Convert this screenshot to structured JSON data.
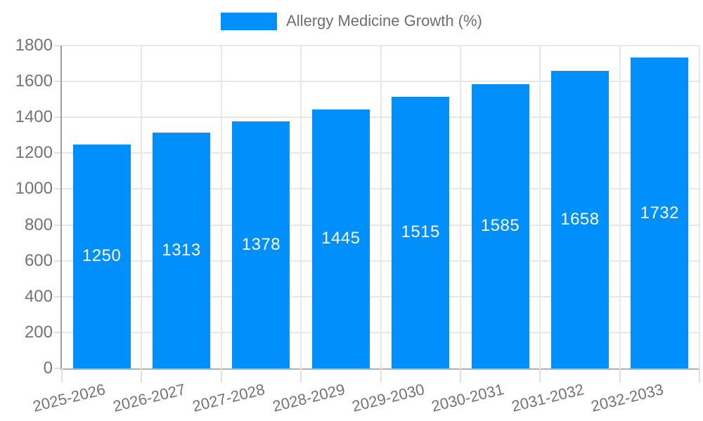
{
  "chart_data": {
    "type": "bar",
    "title": "Allergy Medicine Growth (%)",
    "categories": [
      "2025-2026",
      "2026-2027",
      "2027-2028",
      "2028-2029",
      "2029-2030",
      "2030-2031",
      "2031-2032",
      "2032-2033"
    ],
    "values": [
      1250,
      1313,
      1378,
      1445,
      1515,
      1585,
      1658,
      1732
    ],
    "data_labels": [
      "1250",
      "1313",
      "1378",
      "1445",
      "1515",
      "1585",
      "1658",
      "1732"
    ],
    "xlabel": "",
    "ylabel": "",
    "ylim": [
      0,
      1800
    ],
    "yticks": [
      0,
      200,
      400,
      600,
      800,
      1000,
      1200,
      1400,
      1600,
      1800
    ],
    "grid": true,
    "legend_position": "top-center",
    "x_label_rotation_deg": -14,
    "colors": {
      "bar": "#008ffb",
      "bar_label_text": "#ffffff",
      "grid_line": "#e7e7e7",
      "tick_line": "#e0e0e0",
      "y_axis_line": "#9e9e9e",
      "x_axis_line": "#b0b0b0",
      "axis_text": "#737373",
      "legend_text": "#6e6e6e",
      "background": "#ffffff"
    }
  }
}
